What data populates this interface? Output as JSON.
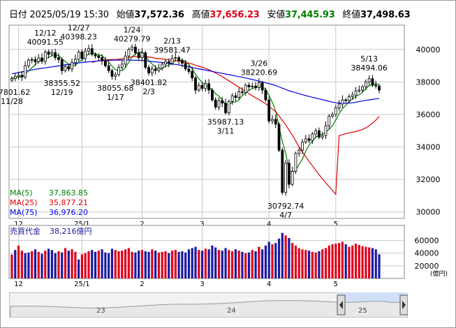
{
  "header": {
    "date_label": "日付",
    "datetime": "2025/05/19 15:30",
    "open_label": "始値",
    "open": "37,572.36",
    "high_label": "高値",
    "high": "37,656.23",
    "low_label": "安値",
    "low": "37,445.93",
    "close_label": "終値",
    "close": "37,498.63"
  },
  "legend": {
    "ma5": "MA(5)",
    "ma5_value": "37,863.85",
    "ma25": "MA(25)",
    "ma25_value": "35,877.21",
    "ma75": "MA(75)",
    "ma75_value": "36,976.20"
  },
  "volume_panel": {
    "title": "売買代金",
    "value": "38,216億円",
    "unit": "(億円)"
  },
  "navigator": {
    "labels": [
      "23",
      "24",
      "25"
    ]
  },
  "colors": {
    "up": "#e0001a",
    "down": "#1a1aa0",
    "ma5": "#008000",
    "ma25": "#e00000",
    "ma75": "#0000e0",
    "grid": "#c8c8c8"
  },
  "chart_data": [
    {
      "type": "candlestick",
      "title": "",
      "x_ticks": [
        {
          "label": "12",
          "index": 2
        },
        {
          "label": "25/1",
          "index": 21
        },
        {
          "label": "2",
          "index": 39
        },
        {
          "label": "3",
          "index": 57
        },
        {
          "label": "4",
          "index": 77
        },
        {
          "label": "5",
          "index": 97
        }
      ],
      "y_ticks": [
        30000,
        32000,
        34000,
        36000,
        38000,
        40000
      ],
      "ylim": [
        29600,
        41500
      ],
      "grid": true,
      "annotations": [
        {
          "text": "37801.62",
          "date": "11/28",
          "index": 0,
          "pos": "below"
        },
        {
          "text": "40091.55",
          "date": "12/12",
          "index": 10,
          "pos": "above"
        },
        {
          "text": "38355.52",
          "date": "12/19",
          "index": 15,
          "pos": "below"
        },
        {
          "text": "40398.23",
          "date": "12/27",
          "index": 20,
          "pos": "above"
        },
        {
          "text": "38055.68",
          "date": "1/17",
          "index": 31,
          "pos": "below"
        },
        {
          "text": "40279.79",
          "date": "1/24",
          "index": 36,
          "pos": "above"
        },
        {
          "text": "38401.82",
          "date": "2/3",
          "index": 41,
          "pos": "below"
        },
        {
          "text": "39581.47",
          "date": "2/13",
          "index": 48,
          "pos": "above"
        },
        {
          "text": "35987.13",
          "date": "3/11",
          "index": 64,
          "pos": "below"
        },
        {
          "text": "38220.69",
          "date": "3/26",
          "index": 74,
          "pos": "above"
        },
        {
          "text": "30792.74",
          "date": "4/7",
          "index": 82,
          "pos": "below"
        },
        {
          "text": "38494.06",
          "date": "5/13",
          "index": 107,
          "pos": "above"
        }
      ],
      "close": [
        38208,
        38350,
        38420,
        38300,
        39000,
        39350,
        39380,
        39250,
        39480,
        39270,
        39850,
        39700,
        39800,
        39500,
        39380,
        38700,
        38950,
        38800,
        39200,
        39400,
        39850,
        39450,
        39900,
        40050,
        39700,
        39600,
        39500,
        39300,
        39000,
        38700,
        38350,
        38450,
        38900,
        39100,
        39600,
        40000,
        40150,
        39800,
        39500,
        39800,
        38900,
        38550,
        38800,
        38700,
        38850,
        39100,
        39250,
        39150,
        39450,
        39500,
        39300,
        39150,
        38800,
        38650,
        38250,
        37500,
        37800,
        37600,
        37900,
        37500,
        36900,
        36450,
        36850,
        36700,
        36100,
        36800,
        37150,
        37050,
        37400,
        37350,
        37800,
        37700,
        37750,
        37650,
        37950,
        37500,
        36900,
        35600,
        35700,
        35400,
        33800,
        31200,
        33000,
        31700,
        32500,
        33600,
        33800,
        34300,
        34500,
        34400,
        34800,
        35000,
        34600,
        34700,
        35300,
        35900,
        36000,
        36400,
        36650,
        36900,
        36850,
        37100,
        37200,
        37450,
        37500,
        37700,
        38000,
        38200,
        37800,
        37750,
        37500
      ],
      "ma": [
        {
          "name": "MA(5)",
          "values": [
            38245,
            38282,
            38302,
            38318,
            38456,
            38684,
            38880,
            39056,
            39292,
            39346,
            39446,
            39510,
            39620,
            39624,
            39646,
            39416,
            39266,
            39066,
            39006,
            39010,
            39240,
            39340,
            39560,
            39730,
            39790,
            39750,
            39650,
            39630,
            39420,
            39220,
            38970,
            38760,
            38680,
            38700,
            38880,
            39210,
            39550,
            39730,
            39810,
            39850,
            39630,
            39310,
            39110,
            38910,
            38760,
            38840,
            38960,
            39020,
            39170,
            39300,
            39330,
            39370,
            39270,
            39080,
            38830,
            38470,
            38200,
            37960,
            37810,
            37660,
            37540,
            37270,
            37130,
            36880,
            36610,
            36600,
            36760,
            36760,
            36900,
            37160,
            37350,
            37460,
            37600,
            37650,
            37770,
            37700,
            37550,
            37180,
            36740,
            36220,
            35280,
            34340,
            33620,
            32560,
            32440,
            32560,
            32920,
            33240,
            33740,
            34120,
            34360,
            34600,
            34720,
            34800,
            34880,
            35100,
            35300,
            35660,
            36050,
            36370,
            36560,
            36790,
            36960,
            37100,
            37220,
            37370,
            37570,
            37770,
            37840,
            37890,
            37850
          ]
        },
        {
          "name": "MA(25)",
          "values": [
            null,
            null,
            null,
            null,
            null,
            null,
            null,
            null,
            null,
            null,
            null,
            null,
            null,
            null,
            null,
            null,
            null,
            null,
            null,
            null,
            null,
            null,
            null,
            null,
            39203,
            39258,
            39304,
            39338,
            39366,
            39375,
            39377,
            39380,
            39400,
            39430,
            39470,
            39512,
            39545,
            39565,
            39572,
            39585,
            39565,
            39541,
            39501,
            39461,
            39439,
            39419,
            39391,
            39361,
            39338,
            39316,
            39286,
            39254,
            39210,
            39164,
            39112,
            39032,
            38966,
            38904,
            38840,
            38758,
            38660,
            38553,
            38445,
            38334,
            38198,
            38070,
            37938,
            37805,
            37676,
            37551,
            37413,
            37277,
            37149,
            37026,
            36917,
            36797,
            36664,
            36498,
            36336,
            36160,
            35920,
            35632,
            35364,
            35040,
            34724,
            34364,
            34005,
            33692,
            33400,
            33112,
            32834,
            32569,
            32295,
            32036,
            31793,
            31554,
            31322,
            31085,
            34700,
            34760,
            34815,
            34865,
            34910,
            34950,
            35005,
            35080,
            35180,
            35310,
            35470,
            35650,
            35880
          ]
        },
        {
          "name": "MA(75)",
          "values": [
            38500,
            38540,
            38580,
            38620,
            38660,
            38700,
            38740,
            38780,
            38810,
            38840,
            38870,
            38900,
            38930,
            38960,
            38990,
            39020,
            39050,
            39080,
            39110,
            39140,
            39170,
            39200,
            39220,
            39240,
            39260,
            39280,
            39300,
            39310,
            39320,
            39330,
            39340,
            39345,
            39348,
            39350,
            39350,
            39350,
            39345,
            39340,
            39330,
            39320,
            39300,
            39280,
            39260,
            39240,
            39220,
            39200,
            39170,
            39140,
            39110,
            39080,
            39050,
            39010,
            38970,
            38930,
            38890,
            38850,
            38810,
            38770,
            38730,
            38690,
            38650,
            38610,
            38570,
            38530,
            38490,
            38450,
            38410,
            38370,
            38330,
            38290,
            38250,
            38200,
            38150,
            38100,
            38050,
            38000,
            37950,
            37900,
            37850,
            37780,
            37700,
            37620,
            37540,
            37460,
            37400,
            37340,
            37280,
            37220,
            37160,
            37110,
            37060,
            37010,
            36960,
            36910,
            36860,
            36810,
            36760,
            36720,
            36700,
            36690,
            36690,
            36700,
            36720,
            36750,
            36790,
            36830,
            36870,
            36900,
            36930,
            36960,
            36976
          ]
        }
      ]
    },
    {
      "type": "bar",
      "title": "売買代金",
      "unit": "億円",
      "y_ticks": [
        20000,
        40000,
        60000
      ],
      "ylim": [
        0,
        75000
      ],
      "up_flags": [
        1,
        0,
        1,
        1,
        0,
        0,
        1,
        0,
        1,
        0,
        1,
        0,
        0,
        0,
        1,
        0,
        1,
        0,
        1,
        1,
        0,
        1,
        1,
        1,
        0,
        0,
        1,
        0,
        0,
        0,
        0,
        1,
        1,
        1,
        1,
        1,
        1,
        0,
        0,
        1,
        0,
        0,
        1,
        0,
        1,
        1,
        1,
        0,
        1,
        1,
        0,
        0,
        0,
        0,
        0,
        0,
        1,
        0,
        1,
        0,
        0,
        0,
        1,
        0,
        0,
        1,
        1,
        0,
        1,
        0,
        1,
        0,
        1,
        0,
        1,
        0,
        0,
        0,
        1,
        0,
        0,
        0,
        1,
        0,
        1,
        1,
        1,
        1,
        1,
        0,
        1,
        1,
        0,
        1,
        1,
        1,
        1,
        1,
        1,
        1,
        0,
        1,
        1,
        1,
        1,
        1,
        1,
        1,
        0,
        0,
        0
      ],
      "values": [
        38000,
        45000,
        52000,
        44000,
        40000,
        41000,
        43000,
        46000,
        42000,
        39000,
        44000,
        47000,
        45000,
        40000,
        43000,
        41000,
        48000,
        44000,
        46000,
        42000,
        30000,
        38000,
        40000,
        43000,
        45000,
        42000,
        44000,
        46000,
        41000,
        40000,
        47000,
        45000,
        43000,
        44000,
        46000,
        48000,
        42000,
        41000,
        44000,
        45000,
        43000,
        42000,
        46000,
        44000,
        41000,
        42000,
        43000,
        40000,
        44000,
        45000,
        42000,
        43000,
        41000,
        46000,
        48000,
        50000,
        45000,
        44000,
        47000,
        46000,
        52000,
        49000,
        45000,
        44000,
        48000,
        45000,
        43000,
        46000,
        44000,
        42000,
        40000,
        41000,
        45000,
        43000,
        50000,
        46000,
        52000,
        58000,
        54000,
        56000,
        63000,
        72000,
        68000,
        64000,
        56000,
        52000,
        48000,
        46000,
        45000,
        44000,
        42000,
        41000,
        43000,
        46000,
        48000,
        52000,
        54000,
        55000,
        56000,
        58000,
        54000,
        50000,
        52000,
        55000,
        53000,
        51000,
        50000,
        49000,
        48000,
        46000,
        38216
      ]
    },
    {
      "type": "area",
      "title": "",
      "x_labels": [
        "23",
        "24",
        "25"
      ]
    }
  ]
}
